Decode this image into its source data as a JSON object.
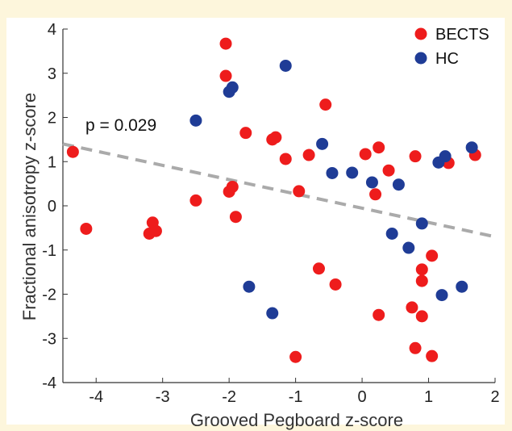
{
  "chart_data": {
    "type": "scatter",
    "title": "",
    "xlabel": "Grooved Pegboard z-score",
    "ylabel": "Fractional anisotropy z-score",
    "xlim": [
      -4.5,
      2
    ],
    "ylim": [
      -4,
      4
    ],
    "xticks": [
      -4,
      -3,
      -2,
      -1,
      0,
      1,
      2
    ],
    "yticks": [
      4,
      3,
      2,
      1,
      0,
      -1,
      -2,
      -3,
      -4
    ],
    "grid": false,
    "legend_position": "top-right",
    "annotation": "p = 0.029",
    "trendline": {
      "x": [
        -4.5,
        2
      ],
      "y": [
        1.4,
        -0.7
      ],
      "color": "#aaaaaa",
      "style": "dashed"
    },
    "series": [
      {
        "name": "BECTS",
        "color": "#ee1c1c",
        "points": [
          [
            -2.05,
            3.67
          ],
          [
            -2.05,
            2.94
          ],
          [
            -1.75,
            1.65
          ],
          [
            -1.3,
            1.55
          ],
          [
            -1.35,
            1.5
          ],
          [
            -1.15,
            1.06
          ],
          [
            -0.55,
            2.29
          ],
          [
            -0.8,
            1.15
          ],
          [
            -4.35,
            1.22
          ],
          [
            -2.0,
            0.32
          ],
          [
            -1.95,
            0.43
          ],
          [
            -2.5,
            0.12
          ],
          [
            -1.9,
            -0.25
          ],
          [
            -0.95,
            0.33
          ],
          [
            -4.15,
            -0.52
          ],
          [
            -3.15,
            -0.38
          ],
          [
            -3.2,
            -0.63
          ],
          [
            -3.1,
            -0.57
          ],
          [
            0.05,
            1.17
          ],
          [
            0.25,
            1.32
          ],
          [
            0.4,
            0.8
          ],
          [
            0.2,
            0.26
          ],
          [
            0.8,
            1.12
          ],
          [
            1.3,
            0.97
          ],
          [
            1.7,
            1.15
          ],
          [
            -0.65,
            -1.42
          ],
          [
            -0.4,
            -1.78
          ],
          [
            1.05,
            -1.13
          ],
          [
            0.9,
            -1.44
          ],
          [
            0.9,
            -1.7
          ],
          [
            0.75,
            -2.3
          ],
          [
            0.9,
            -2.5
          ],
          [
            0.25,
            -2.47
          ],
          [
            0.8,
            -3.22
          ],
          [
            1.05,
            -3.4
          ],
          [
            -1.0,
            -3.42
          ]
        ]
      },
      {
        "name": "HC",
        "color": "#1f3c96",
        "points": [
          [
            -1.15,
            3.17
          ],
          [
            -1.95,
            2.68
          ],
          [
            -2.0,
            2.58
          ],
          [
            -2.5,
            1.93
          ],
          [
            -0.6,
            1.4
          ],
          [
            -0.45,
            0.74
          ],
          [
            -0.15,
            0.75
          ],
          [
            0.15,
            0.53
          ],
          [
            0.55,
            0.48
          ],
          [
            1.15,
            0.98
          ],
          [
            1.25,
            1.12
          ],
          [
            1.65,
            1.32
          ],
          [
            0.9,
            -0.4
          ],
          [
            0.45,
            -0.63
          ],
          [
            0.7,
            -0.95
          ],
          [
            -1.7,
            -1.83
          ],
          [
            -1.35,
            -2.43
          ],
          [
            1.2,
            -2.02
          ],
          [
            1.5,
            -1.83
          ]
        ]
      }
    ]
  }
}
